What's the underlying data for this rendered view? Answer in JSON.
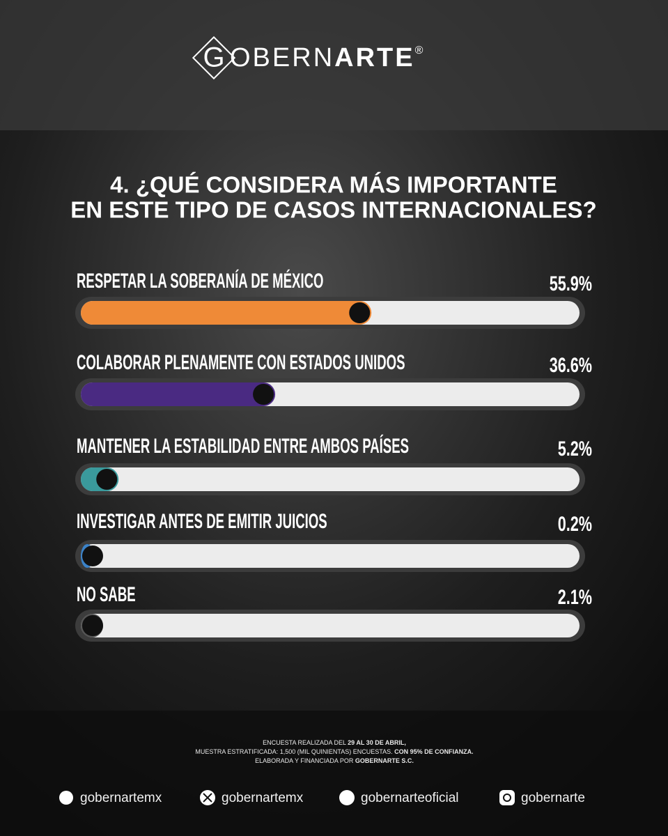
{
  "brand": {
    "letter": "G",
    "light": "OBERN",
    "bold": "ARTE",
    "mark": "®"
  },
  "chart_data": {
    "type": "bar",
    "orientation": "horizontal",
    "title": [
      "4. ¿QUÉ CONSIDERA MÁS IMPORTANTE",
      "EN ESTE TIPO DE CASOS INTERNACIONALES?"
    ],
    "categories": [
      "RESPETAR LA SOBERANÍA DE MÉXICO",
      "COLABORAR PLENAMENTE CON ESTADOS UNIDOS",
      "MANTENER LA ESTABILIDAD ENTRE AMBOS PAÍSES",
      "INVESTIGAR ANTES DE EMITIR JUICIOS",
      "NO SABE"
    ],
    "values": [
      55.9,
      36.6,
      5.2,
      0.2,
      2.1
    ],
    "value_labels": [
      "55.9%",
      "36.6%",
      "5.2%",
      "0.2%",
      "2.1%"
    ],
    "colors": [
      "#ef8a37",
      "#4a2a82",
      "#3a9a9c",
      "#3b82c8",
      "#555555"
    ],
    "xlim": [
      0,
      100
    ]
  },
  "footer": [
    {
      "text": "ENCUESTA REALIZADA DEL ",
      "bold": "29 AL 30 DE ABRIL,"
    },
    {
      "text": "MUESTRA ESTRATIFICADA: 1,500 (MIL QUINIENTAS) ENCUESTAS. ",
      "bold": "CON 95% DE CONFIANZA."
    },
    {
      "text": "ELABORADA Y FINANCIADA POR ",
      "bold": "GOBERNARTE S.C."
    }
  ],
  "social": [
    "gobernartemx",
    "gobernartemx",
    "gobernarteoficial",
    "gobernarte"
  ]
}
